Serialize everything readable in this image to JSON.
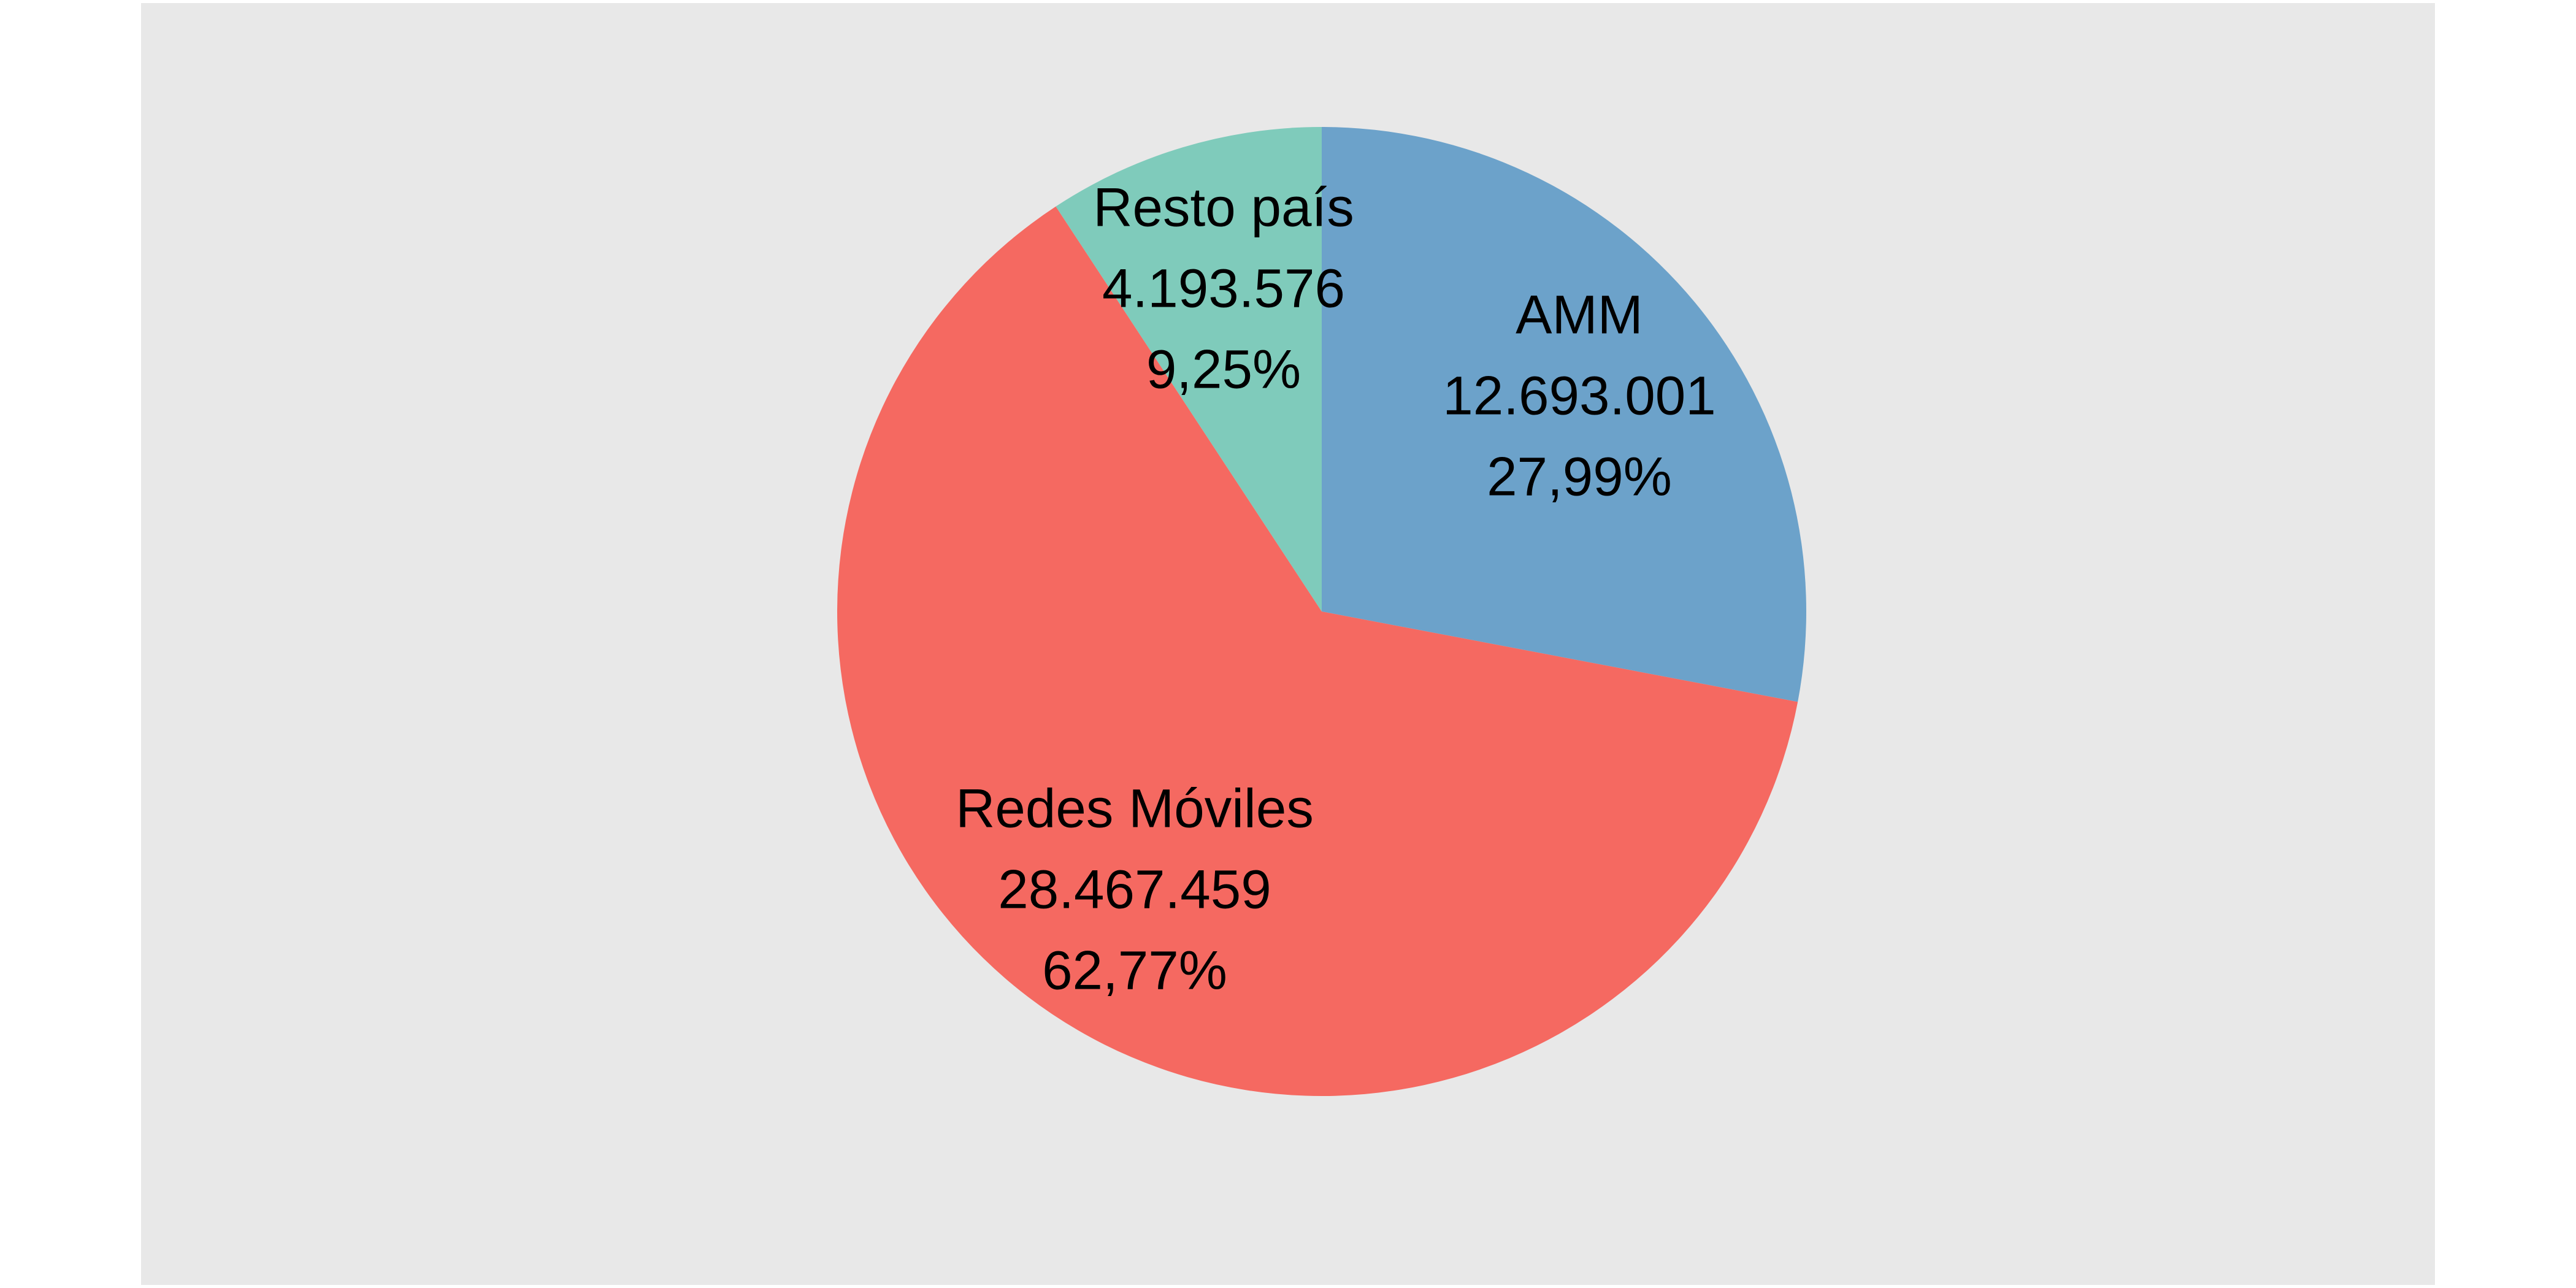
{
  "chart_data": {
    "type": "pie",
    "title": "",
    "background_color": "#e8e8e8",
    "start_angle": "12 o'clock",
    "direction": "clockwise",
    "slices": [
      {
        "name": "AMM",
        "value": 12693001,
        "value_label": "12.693.001",
        "percent": 27.99,
        "percent_label": "27,99%",
        "color": "#6ca2ca"
      },
      {
        "name": "Redes Móviles",
        "value": 28467459,
        "value_label": "28.467.459",
        "percent": 62.77,
        "percent_label": "62,77%",
        "color": "#f56961"
      },
      {
        "name": "Resto país",
        "value": 4193576,
        "value_label": "4.193.576",
        "percent": 9.25,
        "percent_label": "9,25%",
        "color": "#7fcbbb"
      }
    ]
  }
}
